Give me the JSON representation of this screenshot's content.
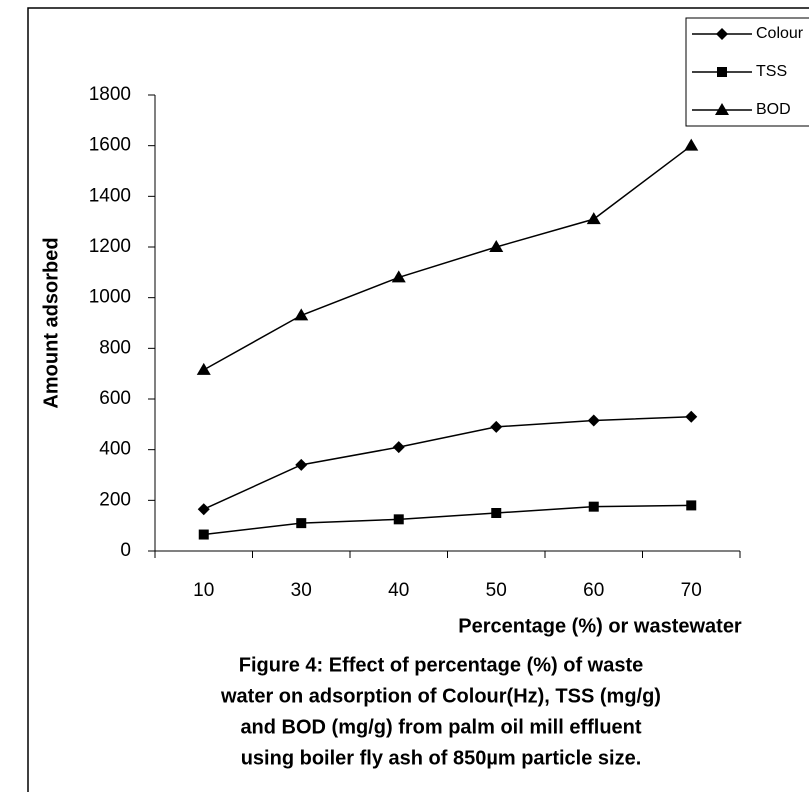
{
  "chart_data": {
    "type": "line",
    "caption": [
      "Figure 4: Effect of percentage (%) of waste",
      "water  on adsorption of Colour(Hz), TSS (mg/g)",
      "and BOD (mg/g) from palm oil mill effluent",
      "using  boiler fly ash of 850µm particle size."
    ],
    "x_label": "Percentage (%) or wastewater",
    "y_label": "Amount adsorbed",
    "categories": [
      "10",
      "30",
      "40",
      "50",
      "60",
      "70"
    ],
    "series": [
      {
        "name": "Colour",
        "color": "#000000",
        "marker": "diamond",
        "values": [
          165,
          340,
          410,
          490,
          515,
          530
        ]
      },
      {
        "name": "TSS",
        "color": "#000000",
        "marker": "square",
        "values": [
          65,
          110,
          125,
          150,
          175,
          180
        ]
      },
      {
        "name": "BOD",
        "color": "#000000",
        "marker": "triangle",
        "values": [
          715,
          930,
          1080,
          1200,
          1310,
          1600
        ]
      }
    ],
    "ylim": [
      0,
      1800
    ],
    "yticks": [
      0,
      200,
      400,
      600,
      800,
      1000,
      1200,
      1400,
      1600,
      1800
    ],
    "legend": "top-right"
  }
}
